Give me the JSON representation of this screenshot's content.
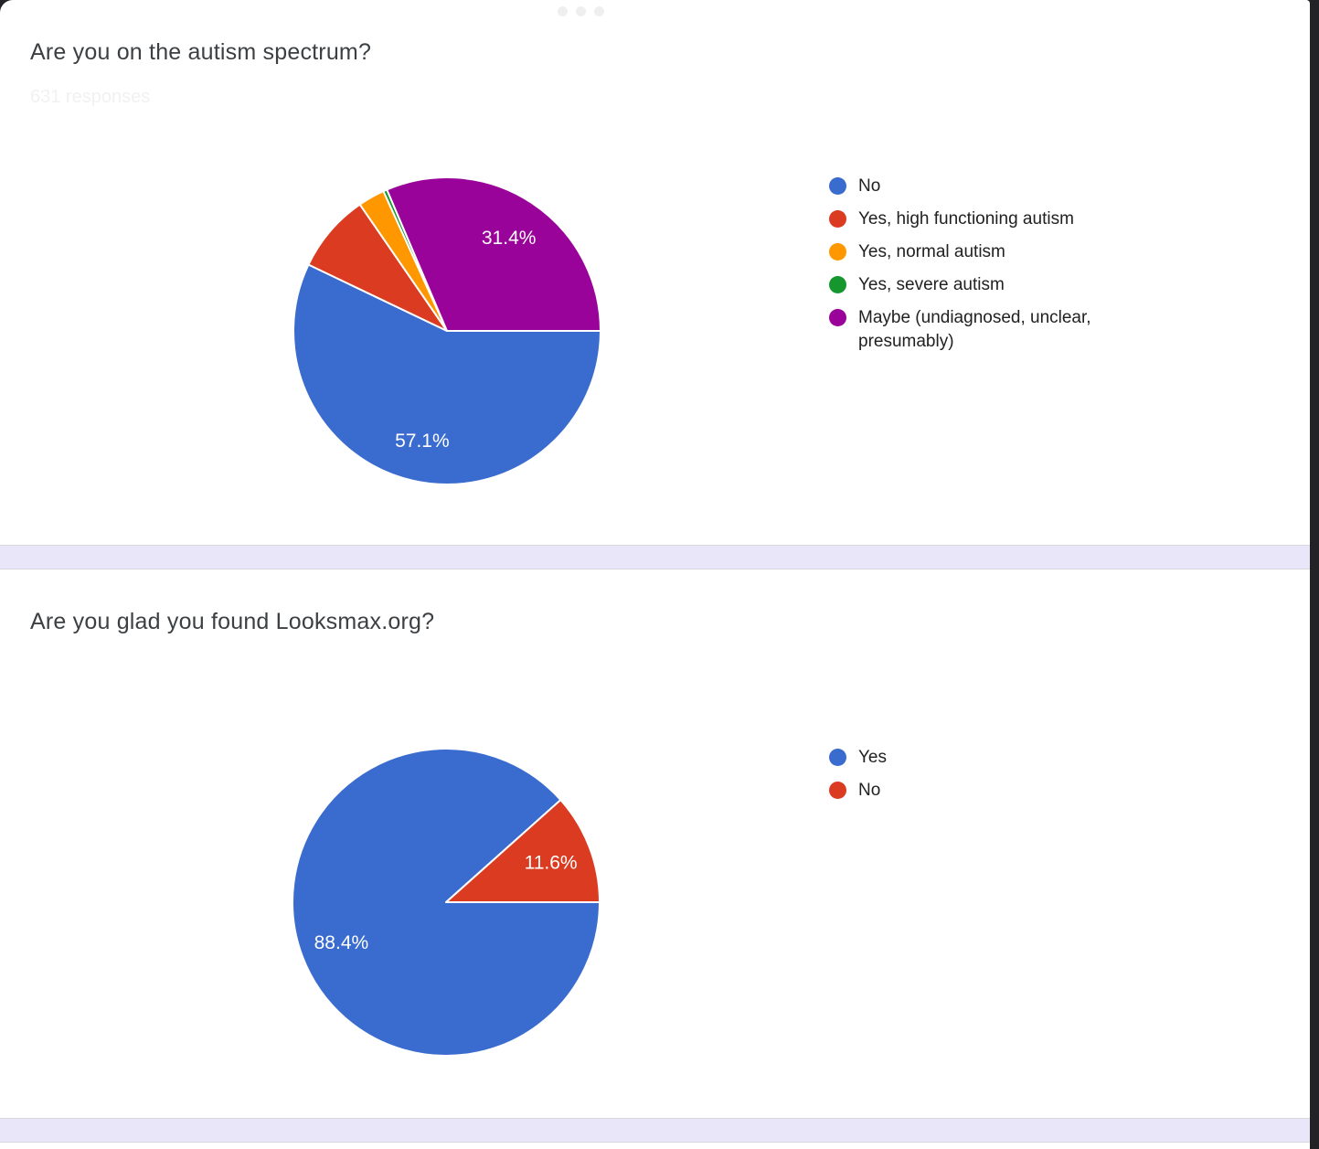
{
  "window": {
    "background_color": "#232327",
    "card_color": "#ffffff",
    "divider_color": "#e8e6f8",
    "drag_dots_color": "#efefef"
  },
  "cards": [
    {
      "title": "Are you on the autism spectrum?",
      "responses_note": "631 responses"
    },
    {
      "title": "Are you glad you found Looksmax.org?"
    }
  ],
  "chart_data": [
    {
      "type": "pie",
      "title": "Are you on the autism spectrum?",
      "legend_position": "right",
      "start_angle": "east",
      "direction": "clockwise",
      "label_color": "#ffffff",
      "slices": [
        {
          "label": "No",
          "value": 57.1,
          "color": "#3a6bce",
          "show_label": true
        },
        {
          "label": "Yes, high functioning autism",
          "value": 8.3,
          "color": "#da3b21",
          "show_label": false
        },
        {
          "label": "Yes, normal autism",
          "value": 2.8,
          "color": "#ff9800",
          "show_label": false
        },
        {
          "label": "Yes, severe autism",
          "value": 0.4,
          "color": "#16972e",
          "show_label": false
        },
        {
          "label": "Maybe (undiagnosed, unclear, presumably)",
          "value": 31.4,
          "color": "#9a0399",
          "show_label": true
        }
      ]
    },
    {
      "type": "pie",
      "title": "Are you glad you found Looksmax.org?",
      "legend_position": "right",
      "start_angle": "east",
      "direction": "clockwise",
      "label_color": "#ffffff",
      "slices": [
        {
          "label": "Yes",
          "value": 88.4,
          "color": "#3a6bce",
          "show_label": true
        },
        {
          "label": "No",
          "value": 11.6,
          "color": "#da3b21",
          "show_label": true
        }
      ]
    }
  ]
}
